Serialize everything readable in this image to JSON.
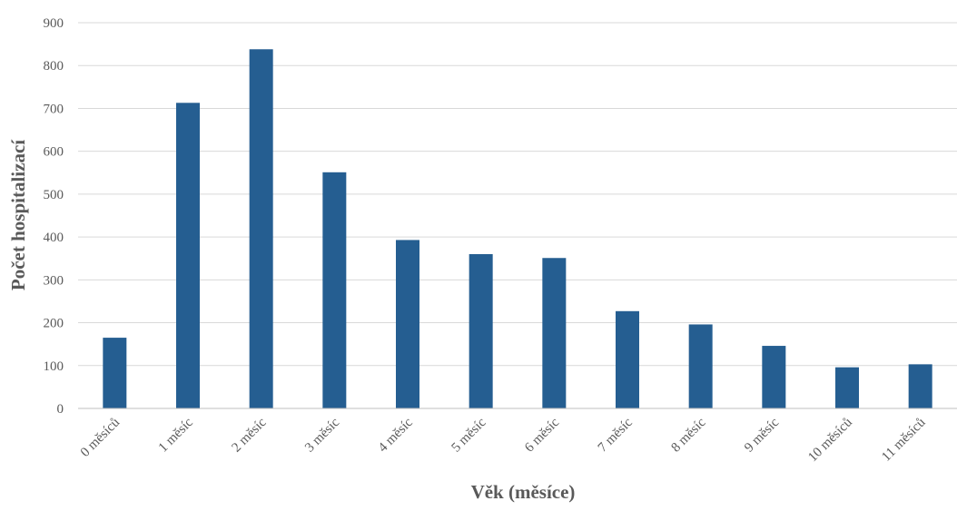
{
  "chart_data": {
    "type": "bar",
    "title": "",
    "xlabel": "Věk (měsíce)",
    "ylabel": "Počet hospitalizací",
    "categories": [
      "0 měsíců",
      "1 měsíc",
      "2 měsíc",
      "3 měsíc",
      "4 měsíc",
      "5 měsíc",
      "6 měsíc",
      "7 měsíc",
      "8 měsíc",
      "9 měsíc",
      "10 měsíců",
      "11 měsíců"
    ],
    "values": [
      165,
      713,
      838,
      551,
      393,
      360,
      351,
      227,
      196,
      146,
      96,
      103
    ],
    "ylim": [
      0,
      900
    ],
    "yticks": [
      0,
      100,
      200,
      300,
      400,
      500,
      600,
      700,
      800,
      900
    ],
    "grid": true,
    "legend": "none",
    "bar_color": "#255e91"
  }
}
